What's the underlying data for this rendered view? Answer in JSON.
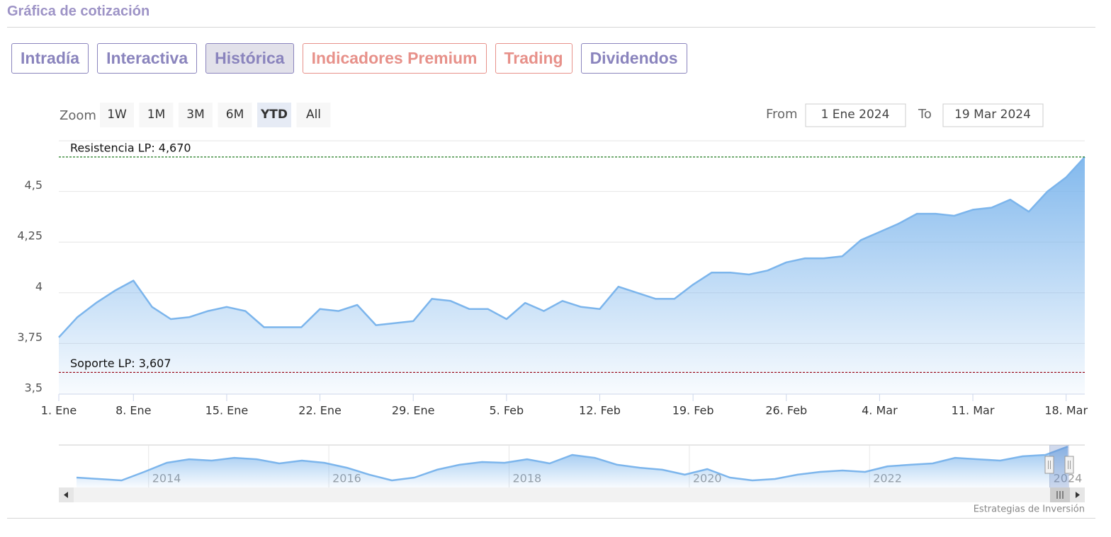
{
  "header": {
    "title": "Gráfica de cotización"
  },
  "tabs": [
    {
      "label": "Intradía",
      "color": "#8a84bd"
    },
    {
      "label": "Interactiva",
      "color": "#8a84bd"
    },
    {
      "label": "Histórica",
      "color": "#8a84bd",
      "active": true
    },
    {
      "label": "Indicadores Premium",
      "color": "#e7918a"
    },
    {
      "label": "Trading",
      "color": "#e7918a"
    },
    {
      "label": "Dividendos",
      "color": "#8a84bd"
    }
  ],
  "range_selector": {
    "zoom_label": "Zoom",
    "buttons": [
      {
        "label": "1W"
      },
      {
        "label": "1M"
      },
      {
        "label": "3M"
      },
      {
        "label": "6M"
      },
      {
        "label": "YTD",
        "selected": true
      },
      {
        "label": "All"
      }
    ]
  },
  "date_inputs": {
    "from_label": "From",
    "from": "1 Ene 2024",
    "to_label": "To",
    "to": "19 Mar 2024"
  },
  "credits": "Estrategias de Inversión",
  "chart_data": {
    "type": "area",
    "color": "#7cb5ec",
    "grid": true,
    "categories": [
      "1. Ene",
      null,
      null,
      null,
      "8. Ene",
      null,
      null,
      null,
      null,
      "15. Ene",
      null,
      null,
      null,
      null,
      "22. Ene",
      null,
      null,
      null,
      null,
      "29. Ene",
      null,
      null,
      null,
      null,
      "5. Feb",
      null,
      null,
      null,
      null,
      "12. Feb",
      null,
      null,
      null,
      null,
      "19. Feb",
      null,
      null,
      null,
      null,
      "26. Feb",
      null,
      null,
      null,
      null,
      "4. Mar",
      null,
      null,
      null,
      null,
      "11. Mar",
      null,
      null,
      null,
      null,
      "18. Mar",
      null
    ],
    "values": [
      3.78,
      3.88,
      3.95,
      4.01,
      4.06,
      3.93,
      3.87,
      3.88,
      3.91,
      3.93,
      3.91,
      3.83,
      3.83,
      3.83,
      3.92,
      3.91,
      3.94,
      3.84,
      3.85,
      3.86,
      3.97,
      3.96,
      3.92,
      3.92,
      3.87,
      3.95,
      3.91,
      3.96,
      3.93,
      3.92,
      4.03,
      4.0,
      3.97,
      3.97,
      4.04,
      4.1,
      4.1,
      4.09,
      4.11,
      4.15,
      4.17,
      4.17,
      4.18,
      4.26,
      4.3,
      4.34,
      4.39,
      4.39,
      4.38,
      4.41,
      4.42,
      4.46,
      4.4,
      4.5,
      4.57,
      4.67
    ],
    "ylim": [
      3.5,
      4.75
    ],
    "yticks": [
      {
        "value": 3.5,
        "label": "3,5"
      },
      {
        "value": 3.75,
        "label": "3,75"
      },
      4,
      {
        "value": 4.25,
        "label": "4,25"
      },
      {
        "value": 4.5,
        "label": "4,5"
      }
    ],
    "plot_lines": [
      {
        "label": "Resistencia LP: 4,670",
        "value": 4.67,
        "color": "#1f7a1f"
      },
      {
        "label": "Soporte LP: 3,607",
        "value": 3.607,
        "color": "#9b1020"
      }
    ],
    "navigator": {
      "type": "area",
      "color": "#7cb5ec",
      "xlim": [
        2013.2,
        2024.2
      ],
      "xticks": [
        2014,
        2016,
        2018,
        2020,
        2022,
        2024
      ],
      "ylim": [
        2.6,
        4.75
      ],
      "values": [
        3.1,
        3.03,
        2.96,
        3.39,
        3.85,
        4.03,
        3.96,
        4.1,
        4.03,
        3.82,
        3.96,
        3.85,
        3.6,
        3.25,
        2.96,
        3.1,
        3.5,
        3.75,
        3.89,
        3.85,
        4.03,
        3.82,
        4.25,
        4.1,
        3.75,
        3.6,
        3.5,
        3.25,
        3.53,
        3.1,
        2.96,
        3.03,
        3.25,
        3.39,
        3.46,
        3.39,
        3.67,
        3.75,
        3.82,
        4.1,
        4.03,
        3.96,
        4.18,
        4.25,
        4.67
      ]
    }
  }
}
